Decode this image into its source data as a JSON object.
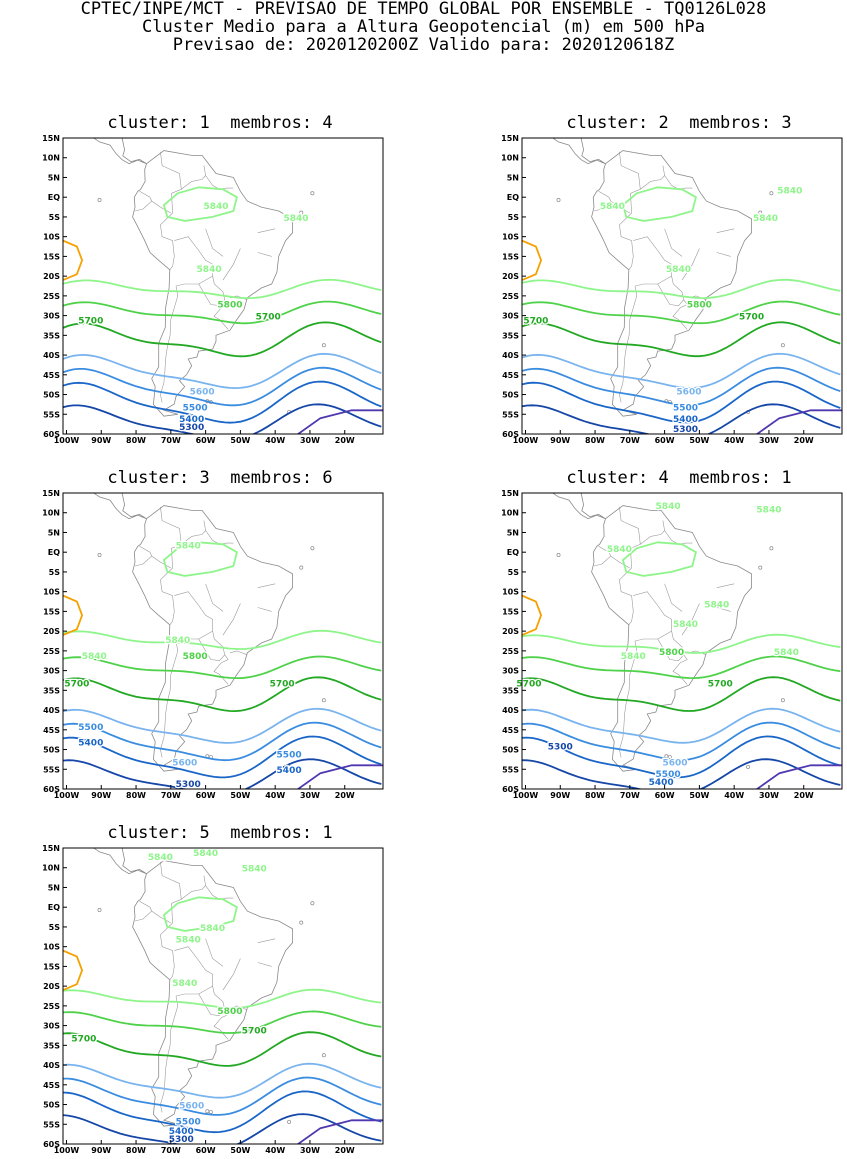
{
  "header": {
    "line1": "CPTEC/INPE/MCT - PREVISAO DE TEMPO GLOBAL POR ENSEMBLE - TQ0126L028",
    "line2": "Cluster Medio para a Altura Geopotencial (m) em 500 hPa",
    "line3": "Previsao de: 2020120200Z   Valido para: 2020120618Z"
  },
  "axes": {
    "y_labels": [
      "15N",
      "10N",
      "5N",
      "EQ",
      "5S",
      "10S",
      "15S",
      "20S",
      "25S",
      "30S",
      "35S",
      "40S",
      "45S",
      "50S",
      "55S",
      "60S"
    ],
    "x_labels": [
      "100W",
      "90W",
      "80W",
      "70W",
      "60W",
      "50W",
      "40W",
      "30W",
      "20W"
    ],
    "lon_range": [
      -101,
      -9
    ],
    "lat_range": [
      -60,
      15
    ]
  },
  "contour_colors": {
    "5840": "#8ef58a",
    "5800": "#4fd24a",
    "5700": "#22a822",
    "5600": "#7ab4ee",
    "5500": "#3a8ce0",
    "5400": "#1a66c8",
    "5300": "#1546a8",
    "high": "#f5a100",
    "low": "#5038b0"
  },
  "panels": [
    {
      "cluster_word": "cluster:",
      "cluster": "1",
      "members_word": "membros:",
      "members": "4",
      "labels": [
        [
          "5840",
          -57,
          -3
        ],
        [
          "5840",
          -34,
          -6
        ],
        [
          "5840",
          -59,
          -19
        ],
        [
          "5800",
          -53,
          -28
        ],
        [
          "5700",
          -93,
          -32
        ],
        [
          "5700",
          -42,
          -31
        ],
        [
          "5600",
          -61,
          -50
        ],
        [
          "5500",
          -63,
          -54
        ],
        [
          "5400",
          -64,
          -57
        ],
        [
          "5300",
          -64,
          -59
        ]
      ]
    },
    {
      "cluster_word": "cluster:",
      "cluster": "2",
      "members_word": "membros:",
      "members": "3",
      "labels": [
        [
          "5840",
          -24,
          1
        ],
        [
          "5840",
          -75,
          -3
        ],
        [
          "5840",
          -31,
          -6
        ],
        [
          "5840",
          -56,
          -19
        ],
        [
          "5800",
          -50,
          -28
        ],
        [
          "5700",
          -97,
          -32
        ],
        [
          "5700",
          -35,
          -31
        ],
        [
          "5600",
          -53,
          -50
        ],
        [
          "5500",
          -54,
          -54
        ],
        [
          "5400",
          -54,
          -57
        ],
        [
          "5300",
          -54,
          -59.5
        ]
      ]
    },
    {
      "cluster_word": "cluster:",
      "cluster": "3",
      "members_word": "membros:",
      "members": "6",
      "labels": [
        [
          "5840",
          -65,
          1
        ],
        [
          "5840",
          -92,
          -27
        ],
        [
          "5840",
          -68,
          -23
        ],
        [
          "5800",
          -63,
          -27
        ],
        [
          "5700",
          -97,
          -34
        ],
        [
          "5700",
          -38,
          -34
        ],
        [
          "5500",
          -93,
          -45
        ],
        [
          "5400",
          -93,
          -49
        ],
        [
          "5600",
          -66,
          -54
        ],
        [
          "5500",
          -36,
          -52
        ],
        [
          "5400",
          -36,
          -56
        ],
        [
          "5300",
          -65,
          -59.5
        ]
      ]
    },
    {
      "cluster_word": "cluster:",
      "cluster": "4",
      "members_word": "membros:",
      "members": "1",
      "labels": [
        [
          "5840",
          -59,
          11
        ],
        [
          "5840",
          -30,
          10
        ],
        [
          "5840",
          -73,
          0
        ],
        [
          "5840",
          -45,
          -14
        ],
        [
          "5840",
          -25,
          -26
        ],
        [
          "5840",
          -54,
          -19
        ],
        [
          "5840",
          -69,
          -27
        ],
        [
          "5800",
          -58,
          -26
        ],
        [
          "5700",
          -99,
          -34
        ],
        [
          "5700",
          -44,
          -34
        ],
        [
          "5300",
          -90,
          -50
        ],
        [
          "5600",
          -57,
          -54
        ],
        [
          "5500",
          -59,
          -57
        ],
        [
          "5400",
          -61,
          -59
        ]
      ]
    },
    {
      "cluster_word": "cluster:",
      "cluster": "5",
      "members_word": "membros:",
      "members": "1",
      "labels": [
        [
          "5840",
          -73,
          12
        ],
        [
          "5840",
          -60,
          13
        ],
        [
          "5840",
          -46,
          9
        ],
        [
          "5840",
          -65,
          -9
        ],
        [
          "5840",
          -58,
          -6
        ],
        [
          "5840",
          -66,
          -20
        ],
        [
          "5800",
          -53,
          -27
        ],
        [
          "5700",
          -95,
          -34
        ],
        [
          "5700",
          -46,
          -32
        ],
        [
          "5600",
          -64,
          -51
        ],
        [
          "5500",
          -65,
          -55
        ],
        [
          "5400",
          -67,
          -57.5
        ],
        [
          "5300",
          -67,
          -59.5
        ]
      ]
    }
  ]
}
